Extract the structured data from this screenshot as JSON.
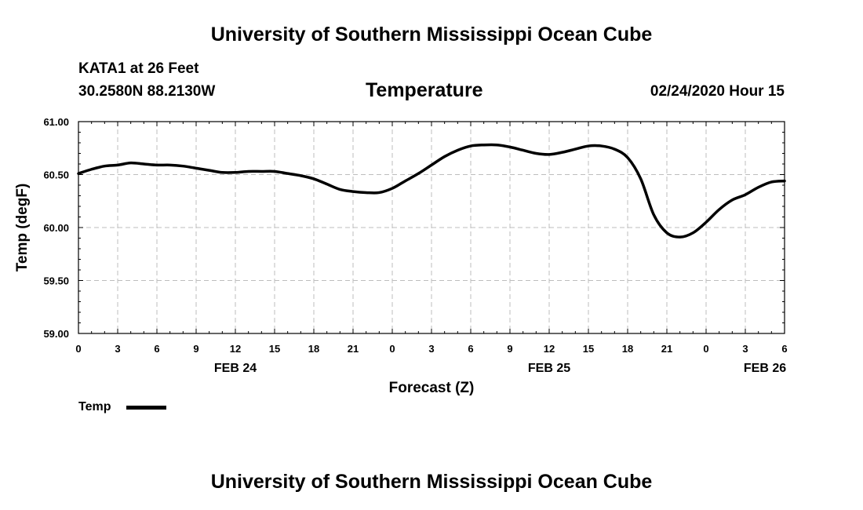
{
  "header": {
    "title": "University of Southern Mississippi Ocean Cube",
    "station": "KATA1 at 26 Feet",
    "coords": "30.2580N 88.2130W",
    "parameter": "Temperature",
    "timestamp": "02/24/2020 Hour 15"
  },
  "footer": {
    "title": "University of Southern Mississippi Ocean Cube"
  },
  "chart_data": {
    "type": "line",
    "title": "Temperature",
    "xlabel": "Forecast (Z)",
    "ylabel": "Temp (degF)",
    "xlim": [
      0,
      54
    ],
    "ylim": [
      59.0,
      61.0
    ],
    "x_ticks": [
      {
        "hour": 0,
        "label": "0"
      },
      {
        "hour": 3,
        "label": "3"
      },
      {
        "hour": 6,
        "label": "6"
      },
      {
        "hour": 9,
        "label": "9"
      },
      {
        "hour": 12,
        "label": "12"
      },
      {
        "hour": 15,
        "label": "15"
      },
      {
        "hour": 18,
        "label": "18"
      },
      {
        "hour": 21,
        "label": "21"
      },
      {
        "hour": 24,
        "label": "0"
      },
      {
        "hour": 27,
        "label": "3"
      },
      {
        "hour": 30,
        "label": "6"
      },
      {
        "hour": 33,
        "label": "9"
      },
      {
        "hour": 36,
        "label": "12"
      },
      {
        "hour": 39,
        "label": "15"
      },
      {
        "hour": 42,
        "label": "18"
      },
      {
        "hour": 45,
        "label": "21"
      },
      {
        "hour": 48,
        "label": "0"
      },
      {
        "hour": 51,
        "label": "3"
      },
      {
        "hour": 54,
        "label": "6"
      }
    ],
    "date_labels": [
      {
        "hour": 12,
        "label": "FEB 24"
      },
      {
        "hour": 36,
        "label": "FEB 25"
      },
      {
        "hour": 52.5,
        "label": "FEB 26"
      }
    ],
    "y_ticks": [
      {
        "value": 61.0,
        "label": "61.00"
      },
      {
        "value": 60.5,
        "label": "60.50"
      },
      {
        "value": 60.0,
        "label": "60.00"
      },
      {
        "value": 59.5,
        "label": "59.50"
      },
      {
        "value": 59.0,
        "label": "59.00"
      }
    ],
    "grid": true,
    "legend_position": "bottom-left",
    "series": [
      {
        "name": "Temp",
        "color": "#000000",
        "x": [
          0,
          1,
          2,
          3,
          4,
          5,
          6,
          7,
          8,
          9,
          10,
          11,
          12,
          13,
          14,
          15,
          16,
          17,
          18,
          19,
          20,
          21,
          22,
          23,
          24,
          25,
          26,
          27,
          28,
          29,
          30,
          31,
          32,
          33,
          34,
          35,
          36,
          37,
          38,
          39,
          40,
          41,
          42,
          43,
          44,
          45,
          46,
          47,
          48,
          49,
          50,
          51,
          52,
          53,
          54
        ],
        "y": [
          60.51,
          60.55,
          60.58,
          60.59,
          60.61,
          60.6,
          60.59,
          60.59,
          60.58,
          60.56,
          60.54,
          60.52,
          60.52,
          60.53,
          60.53,
          60.53,
          60.51,
          60.49,
          60.46,
          60.41,
          60.36,
          60.34,
          60.33,
          60.33,
          60.37,
          60.44,
          60.51,
          60.59,
          60.67,
          60.73,
          60.77,
          60.78,
          60.78,
          60.76,
          60.73,
          60.7,
          60.69,
          60.71,
          60.74,
          60.77,
          60.77,
          60.74,
          60.66,
          60.46,
          60.12,
          59.95,
          59.91,
          59.95,
          60.05,
          60.17,
          60.26,
          60.31,
          60.38,
          60.43,
          60.44
        ]
      }
    ]
  }
}
